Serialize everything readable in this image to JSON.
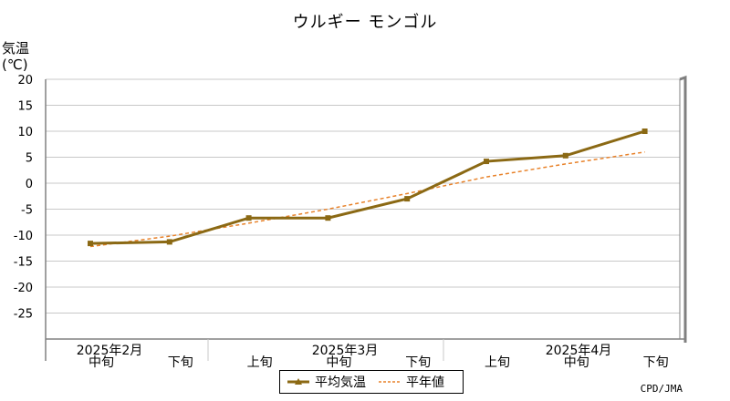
{
  "title": "ウルギー モンゴル",
  "ylabel_line1": "気温",
  "ylabel_line2": "(℃)",
  "credit": "CPD/JMA",
  "colors": {
    "avg": "#8B6914",
    "normal": "#E8822A",
    "grid": "#c8c8c8",
    "axis": "#808080"
  },
  "chart_data": {
    "type": "line",
    "ylim": [
      -30,
      20
    ],
    "yticks": [
      20,
      15,
      10,
      5,
      0,
      -5,
      -10,
      -15,
      -20,
      -25
    ],
    "x_labels_top": [
      "2025年2月",
      "2025年3月",
      "2025年4月"
    ],
    "x_labels_bottom": [
      "中旬",
      "下旬",
      "上旬",
      "中旬",
      "下旬",
      "上旬",
      "中旬",
      "下旬"
    ],
    "series": [
      {
        "name": "平均気温",
        "values": [
          -11.6,
          -11.3,
          -6.7,
          -6.7,
          -3.0,
          4.2,
          5.3,
          10.0
        ]
      },
      {
        "name": "平年値",
        "values": [
          -12.2,
          -10.2,
          -7.7,
          -5.0,
          -2.0,
          1.2,
          3.7,
          6.0
        ]
      }
    ],
    "legend": [
      "平均気温",
      "平年値"
    ],
    "legend_position": "bottom"
  }
}
